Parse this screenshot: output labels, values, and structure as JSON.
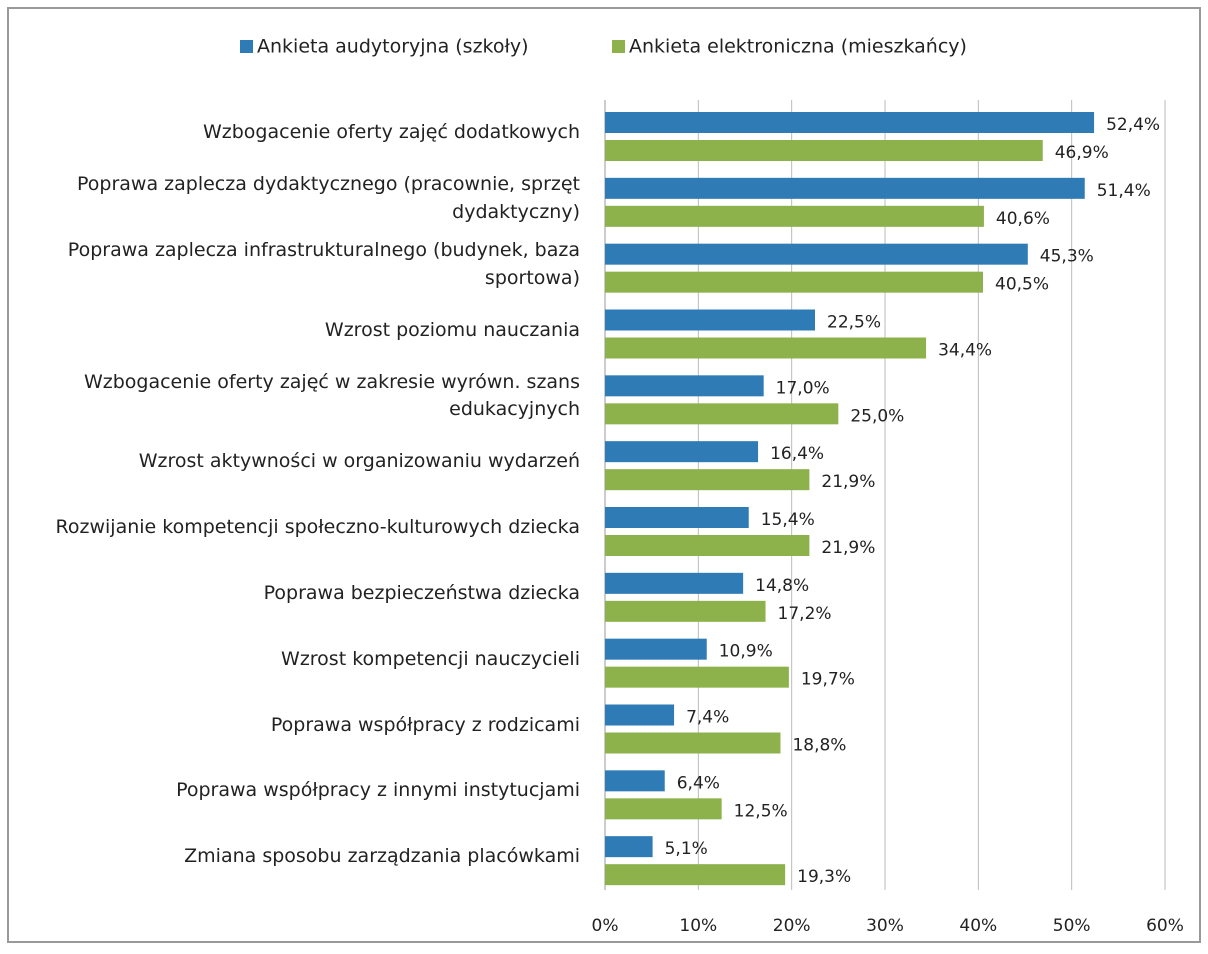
{
  "chart_data": {
    "type": "bar",
    "orientation": "horizontal",
    "categories": [
      "Wzbogacenie oferty zajęć dodatkowych",
      "Poprawa zaplecza dydaktycznego (pracownie, sprzęt dydaktyczny)",
      "Poprawa zaplecza infrastrukturalnego (budynek, baza sportowa)",
      "Wzrost poziomu nauczania",
      "Wzbogacenie oferty zajęć w zakresie wyrówn. szans edukacyjnych",
      "Wzrost aktywności w organizowaniu wydarzeń",
      "Rozwijanie kompetencji społeczno-kulturowych dziecka",
      "Poprawa bezpieczeństwa dziecka",
      "Wzrost kompetencji nauczycieli",
      "Poprawa współpracy z rodzicami",
      "Poprawa współpracy z innymi instytucjami",
      "Zmiana sposobu zarządzania placówkami"
    ],
    "series": [
      {
        "name": "Ankieta audytoryjna (szkoły)",
        "color": "#2f7bb6",
        "values": [
          52.4,
          51.4,
          45.3,
          22.5,
          17.0,
          16.4,
          15.4,
          14.8,
          10.9,
          7.4,
          6.4,
          5.1
        ],
        "value_labels": [
          "52,4%",
          "51,4%",
          "45,3%",
          "22,5%",
          "17,0%",
          "16,4%",
          "15,4%",
          "14,8%",
          "10,9%",
          "7,4%",
          "6,4%",
          "5,1%"
        ]
      },
      {
        "name": "Ankieta elektroniczna (mieszkańcy)",
        "color": "#8db24c",
        "values": [
          46.9,
          40.6,
          40.5,
          34.4,
          25.0,
          21.9,
          21.9,
          17.2,
          19.7,
          18.8,
          12.5,
          19.3
        ],
        "value_labels": [
          "46,9%",
          "40,6%",
          "40,5%",
          "34,4%",
          "25,0%",
          "21,9%",
          "21,9%",
          "17,2%",
          "19,7%",
          "18,8%",
          "12,5%",
          "19,3%"
        ]
      }
    ],
    "xlim": [
      0,
      60
    ],
    "xticks": [
      {
        "value": 0,
        "label": "0%"
      },
      {
        "value": 10,
        "label": "10%"
      },
      {
        "value": 20,
        "label": "20%"
      },
      {
        "value": 30,
        "label": "30%"
      },
      {
        "value": 40,
        "label": "40%"
      },
      {
        "value": 50,
        "label": "50%"
      },
      {
        "value": 60,
        "label": "60%"
      }
    ],
    "grid": true,
    "legend": "top"
  }
}
